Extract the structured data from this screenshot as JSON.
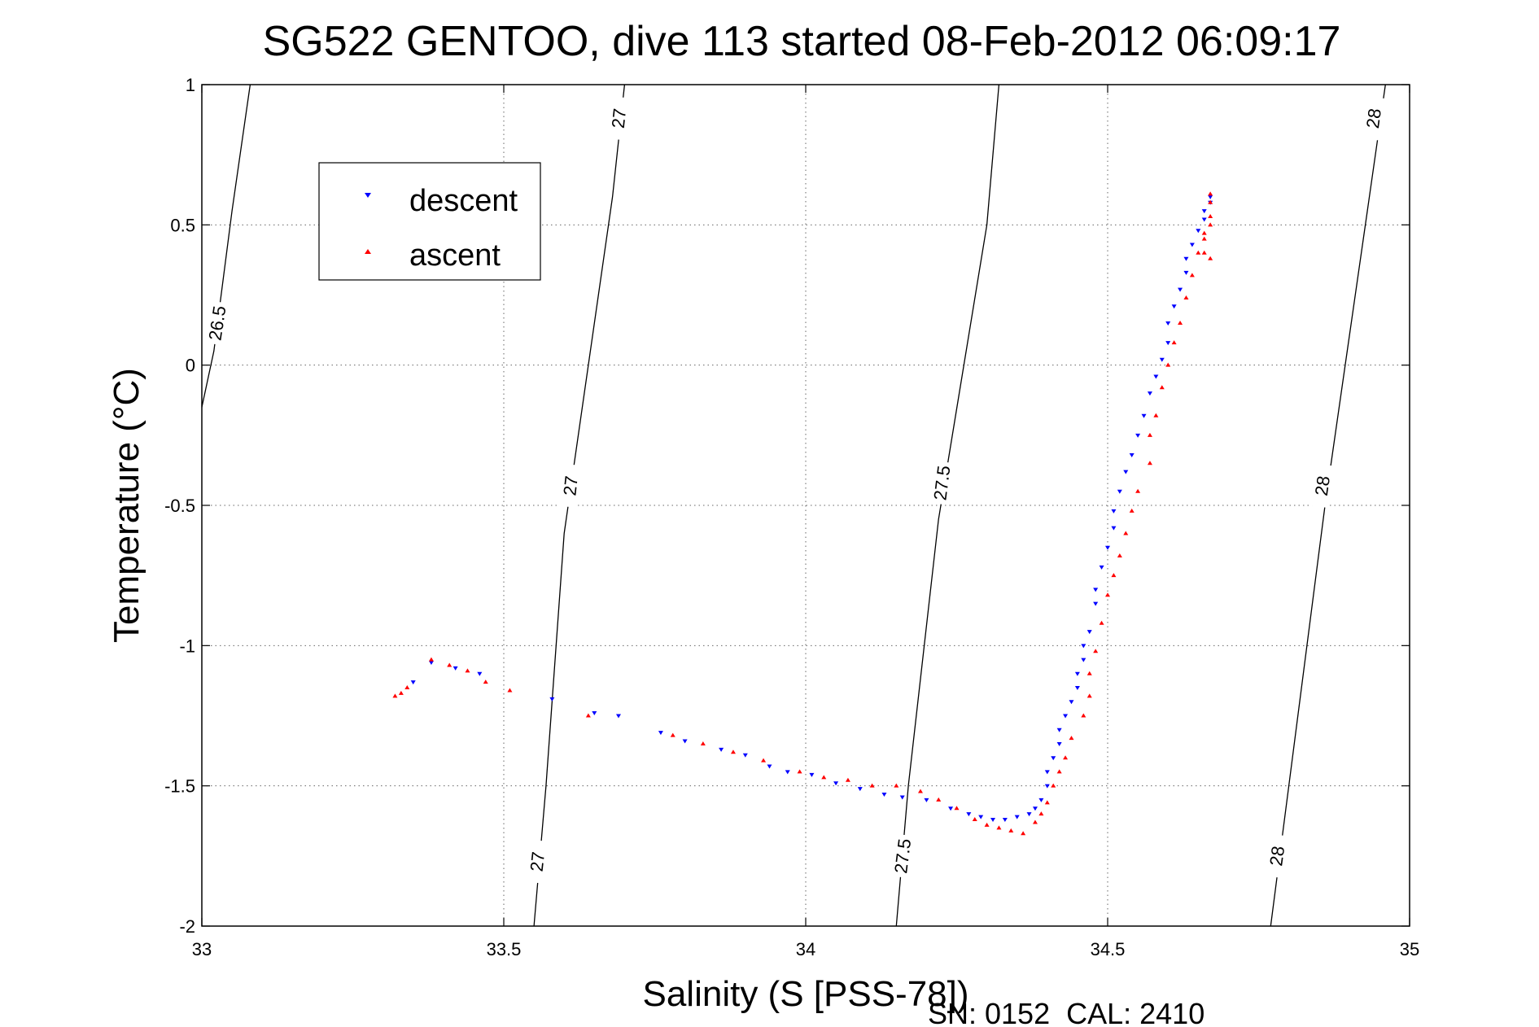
{
  "chart_data": {
    "type": "scatter",
    "title": "SG522 GENTOO, dive 113 started 08-Feb-2012 06:09:17",
    "xlabel": "Salinity (S [PSS-78])",
    "ylabel": "Temperature (°C)",
    "xlim": [
      33,
      35
    ],
    "ylim": [
      -2,
      1
    ],
    "xticks": [
      33,
      33.5,
      34,
      34.5,
      35
    ],
    "xtick_labels": [
      "33",
      "33.5",
      "34",
      "34.5",
      "35"
    ],
    "yticks": [
      1,
      0.5,
      0,
      -0.5,
      -1,
      -1.5,
      -2
    ],
    "ytick_labels": [
      "1",
      "0.5",
      "0",
      "-0.5",
      "-1",
      "-1.5",
      "-2"
    ],
    "grid": true,
    "legend_position": "top-left",
    "footer": "SN: 0152  CAL: 2410",
    "density_contours": [
      {
        "level": "26.5",
        "points": [
          [
            33.0,
            -0.15
          ],
          [
            33.01,
            -0.05
          ],
          [
            33.02,
            0.05
          ],
          [
            33.05,
            0.55
          ],
          [
            33.08,
            1.0
          ]
        ],
        "labels": [
          {
            "text": "26.5",
            "x": 33.025,
            "y": 0.15
          }
        ]
      },
      {
        "level": "27",
        "points": [
          [
            33.55,
            -2.0
          ],
          [
            33.57,
            -1.5
          ],
          [
            33.6,
            -0.6
          ],
          [
            33.68,
            0.6
          ],
          [
            33.7,
            1.0
          ]
        ],
        "labels": [
          {
            "text": "27",
            "x": 33.555,
            "y": -1.77
          },
          {
            "text": "27",
            "x": 33.61,
            "y": -0.43
          },
          {
            "text": "27",
            "x": 33.69,
            "y": 0.88
          }
        ]
      },
      {
        "level": "27.5",
        "points": [
          [
            34.15,
            -2.0
          ],
          [
            34.17,
            -1.5
          ],
          [
            34.22,
            -0.55
          ],
          [
            34.3,
            0.5
          ],
          [
            34.32,
            1.0
          ]
        ],
        "labels": [
          {
            "text": "27.5",
            "x": 34.16,
            "y": -1.75
          },
          {
            "text": "27.5",
            "x": 34.225,
            "y": -0.42
          }
        ]
      },
      {
        "level": "28",
        "points": [
          [
            34.77,
            -2.0
          ],
          [
            34.8,
            -1.5
          ],
          [
            34.86,
            -0.5
          ],
          [
            34.93,
            0.55
          ],
          [
            34.96,
            1.0
          ]
        ],
        "labels": [
          {
            "text": "28",
            "x": 34.78,
            "y": -1.75
          },
          {
            "text": "28",
            "x": 34.855,
            "y": -0.43
          },
          {
            "text": "28",
            "x": 34.94,
            "y": 0.88
          }
        ]
      }
    ],
    "series": [
      {
        "name": "descent",
        "color": "#0000ff",
        "marker": "triangle-down",
        "points": [
          [
            33.35,
            -1.13
          ],
          [
            33.38,
            -1.06
          ],
          [
            33.42,
            -1.08
          ],
          [
            33.46,
            -1.1
          ],
          [
            33.58,
            -1.19
          ],
          [
            33.65,
            -1.24
          ],
          [
            33.69,
            -1.25
          ],
          [
            33.76,
            -1.31
          ],
          [
            33.8,
            -1.34
          ],
          [
            33.86,
            -1.37
          ],
          [
            33.9,
            -1.39
          ],
          [
            33.94,
            -1.43
          ],
          [
            33.97,
            -1.45
          ],
          [
            34.01,
            -1.46
          ],
          [
            34.05,
            -1.49
          ],
          [
            34.09,
            -1.51
          ],
          [
            34.13,
            -1.53
          ],
          [
            34.16,
            -1.54
          ],
          [
            34.2,
            -1.55
          ],
          [
            34.24,
            -1.58
          ],
          [
            34.27,
            -1.6
          ],
          [
            34.29,
            -1.61
          ],
          [
            34.31,
            -1.62
          ],
          [
            34.33,
            -1.62
          ],
          [
            34.35,
            -1.61
          ],
          [
            34.37,
            -1.6
          ],
          [
            34.38,
            -1.58
          ],
          [
            34.39,
            -1.55
          ],
          [
            34.4,
            -1.5
          ],
          [
            34.4,
            -1.45
          ],
          [
            34.41,
            -1.4
          ],
          [
            34.42,
            -1.35
          ],
          [
            34.42,
            -1.3
          ],
          [
            34.43,
            -1.25
          ],
          [
            34.44,
            -1.2
          ],
          [
            34.45,
            -1.15
          ],
          [
            34.45,
            -1.1
          ],
          [
            34.46,
            -1.05
          ],
          [
            34.46,
            -1.0
          ],
          [
            34.47,
            -0.95
          ],
          [
            34.48,
            -0.85
          ],
          [
            34.48,
            -0.8
          ],
          [
            34.49,
            -0.72
          ],
          [
            34.5,
            -0.65
          ],
          [
            34.51,
            -0.58
          ],
          [
            34.51,
            -0.52
          ],
          [
            34.52,
            -0.45
          ],
          [
            34.53,
            -0.38
          ],
          [
            34.54,
            -0.32
          ],
          [
            34.55,
            -0.25
          ],
          [
            34.56,
            -0.18
          ],
          [
            34.57,
            -0.1
          ],
          [
            34.58,
            -0.04
          ],
          [
            34.59,
            0.02
          ],
          [
            34.6,
            0.08
          ],
          [
            34.6,
            0.15
          ],
          [
            34.61,
            0.21
          ],
          [
            34.62,
            0.27
          ],
          [
            34.63,
            0.33
          ],
          [
            34.63,
            0.38
          ],
          [
            34.64,
            0.43
          ],
          [
            34.65,
            0.48
          ],
          [
            34.66,
            0.52
          ],
          [
            34.66,
            0.55
          ],
          [
            34.67,
            0.58
          ],
          [
            34.67,
            0.6
          ]
        ]
      },
      {
        "name": "ascent",
        "color": "#ff0000",
        "marker": "triangle-up",
        "points": [
          [
            33.32,
            -1.18
          ],
          [
            33.33,
            -1.17
          ],
          [
            33.34,
            -1.15
          ],
          [
            33.38,
            -1.05
          ],
          [
            33.41,
            -1.07
          ],
          [
            33.44,
            -1.09
          ],
          [
            33.47,
            -1.13
          ],
          [
            33.51,
            -1.16
          ],
          [
            33.64,
            -1.25
          ],
          [
            33.78,
            -1.32
          ],
          [
            33.83,
            -1.35
          ],
          [
            33.88,
            -1.38
          ],
          [
            33.93,
            -1.41
          ],
          [
            33.99,
            -1.45
          ],
          [
            34.03,
            -1.47
          ],
          [
            34.07,
            -1.48
          ],
          [
            34.11,
            -1.5
          ],
          [
            34.15,
            -1.5
          ],
          [
            34.19,
            -1.52
          ],
          [
            34.22,
            -1.55
          ],
          [
            34.25,
            -1.58
          ],
          [
            34.28,
            -1.62
          ],
          [
            34.3,
            -1.64
          ],
          [
            34.32,
            -1.65
          ],
          [
            34.34,
            -1.66
          ],
          [
            34.36,
            -1.67
          ],
          [
            34.38,
            -1.63
          ],
          [
            34.39,
            -1.6
          ],
          [
            34.4,
            -1.56
          ],
          [
            34.41,
            -1.5
          ],
          [
            34.42,
            -1.45
          ],
          [
            34.43,
            -1.4
          ],
          [
            34.44,
            -1.33
          ],
          [
            34.46,
            -1.25
          ],
          [
            34.47,
            -1.18
          ],
          [
            34.47,
            -1.1
          ],
          [
            34.48,
            -1.02
          ],
          [
            34.49,
            -0.92
          ],
          [
            34.5,
            -0.82
          ],
          [
            34.51,
            -0.75
          ],
          [
            34.52,
            -0.68
          ],
          [
            34.53,
            -0.6
          ],
          [
            34.54,
            -0.52
          ],
          [
            34.55,
            -0.45
          ],
          [
            34.57,
            -0.35
          ],
          [
            34.57,
            -0.25
          ],
          [
            34.58,
            -0.18
          ],
          [
            34.59,
            -0.08
          ],
          [
            34.6,
            0.0
          ],
          [
            34.61,
            0.08
          ],
          [
            34.62,
            0.15
          ],
          [
            34.63,
            0.24
          ],
          [
            34.64,
            0.32
          ],
          [
            34.65,
            0.4
          ],
          [
            34.66,
            0.47
          ],
          [
            34.67,
            0.53
          ],
          [
            34.67,
            0.58
          ],
          [
            34.67,
            0.61
          ],
          [
            34.67,
            0.5
          ],
          [
            34.66,
            0.45
          ],
          [
            34.66,
            0.4
          ],
          [
            34.67,
            0.38
          ]
        ]
      }
    ]
  }
}
